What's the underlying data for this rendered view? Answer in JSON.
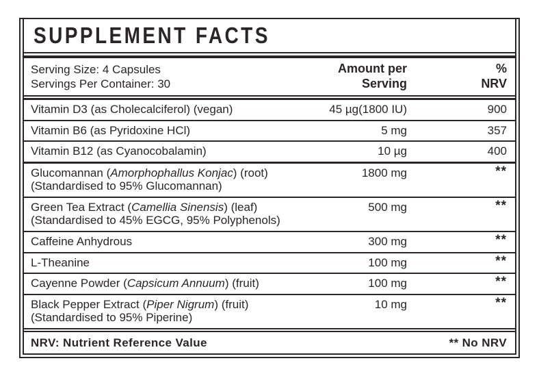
{
  "colors": {
    "ink": "#2b2526",
    "background": "#ffffff"
  },
  "label": {
    "title": "SUPPLEMENT FACTS",
    "serving": {
      "line1": "Serving Size: 4 Capsules",
      "line2": "Servings Per Container: 30"
    },
    "columns": {
      "amount_line1": "Amount per",
      "amount_line2": "Serving",
      "nrv_line1": "%",
      "nrv_line2": "NRV"
    },
    "rows": [
      {
        "name_pre": "Vitamin D3 (as Cholecalciferol) (vegan)",
        "amount": "45 µg(1800 IU)",
        "nrv": "900"
      },
      {
        "name_pre": "Vitamin B6 (as Pyridoxine HCl)",
        "amount": "5 mg",
        "nrv": "357"
      },
      {
        "name_pre": "Vitamin B12 (as Cyanocobalamin)",
        "amount": "10 µg",
        "nrv": "400"
      },
      {
        "name_pre": "Glucomannan (",
        "name_italic": "Amorphophallus Konjac",
        "name_post": ") (root)",
        "name_line2": "(Standardised to 95% Glucomannan)",
        "amount": "1800 mg",
        "nrv": "**",
        "section_break": true
      },
      {
        "name_pre": "Green Tea Extract (",
        "name_italic": "Camellia Sinensis",
        "name_post": ") (leaf)",
        "name_line2": "(Standardised to 45% EGCG, 95% Polyphenols)",
        "amount": "500 mg",
        "nrv": "**"
      },
      {
        "name_pre": "Caffeine Anhydrous",
        "amount": "300 mg",
        "nrv": "**"
      },
      {
        "name_pre": "L-Theanine",
        "amount": "100 mg",
        "nrv": "**"
      },
      {
        "name_pre": "Cayenne Powder (",
        "name_italic": "Capsicum Annuum",
        "name_post": ") (fruit)",
        "amount": "100 mg",
        "nrv": "**"
      },
      {
        "name_pre": "Black Pepper Extract (",
        "name_italic": "Piper Nigrum",
        "name_post": ") (fruit)",
        "name_line2": "(Standardised to 95% Piperine)",
        "amount": "10 mg",
        "nrv": "**"
      }
    ],
    "footer": {
      "left": "NRV: Nutrient Reference Value",
      "right": "** No NRV"
    }
  }
}
